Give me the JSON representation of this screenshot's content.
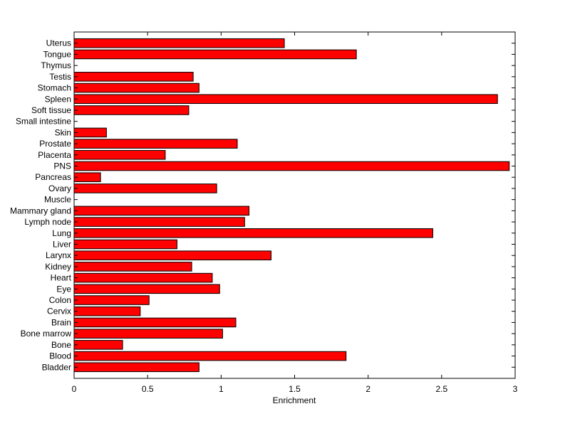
{
  "chart_data": {
    "type": "bar",
    "orientation": "horizontal",
    "title": "",
    "xlabel": "Enrichment",
    "ylabel": "",
    "xlim": [
      0,
      3
    ],
    "xticks": [
      "0",
      "0.5",
      "1",
      "1.5",
      "2",
      "2.5",
      "3"
    ],
    "grid": false,
    "bar_color": "#ff0000",
    "bar_edge_color": "#000000",
    "categories": [
      "Uterus",
      "Tongue",
      "Thymus",
      "Testis",
      "Stomach",
      "Spleen",
      "Soft tissue",
      "Small intestine",
      "Skin",
      "Prostate",
      "Placenta",
      "PNS",
      "Pancreas",
      "Ovary",
      "Muscle",
      "Mammary gland",
      "Lymph node",
      "Lung",
      "Liver",
      "Larynx",
      "Kidney",
      "Heart",
      "Eye",
      "Colon",
      "Cervix",
      "Brain",
      "Bone marrow",
      "Bone",
      "Blood",
      "Bladder"
    ],
    "values": [
      1.43,
      1.92,
      0,
      0.81,
      0.85,
      2.88,
      0.78,
      0,
      0.22,
      1.11,
      0.62,
      2.96,
      0.18,
      0.97,
      0,
      1.19,
      1.16,
      2.44,
      0.7,
      1.34,
      0.8,
      0.94,
      0.99,
      0.51,
      0.45,
      1.1,
      1.01,
      0.33,
      1.85,
      0.85
    ]
  }
}
